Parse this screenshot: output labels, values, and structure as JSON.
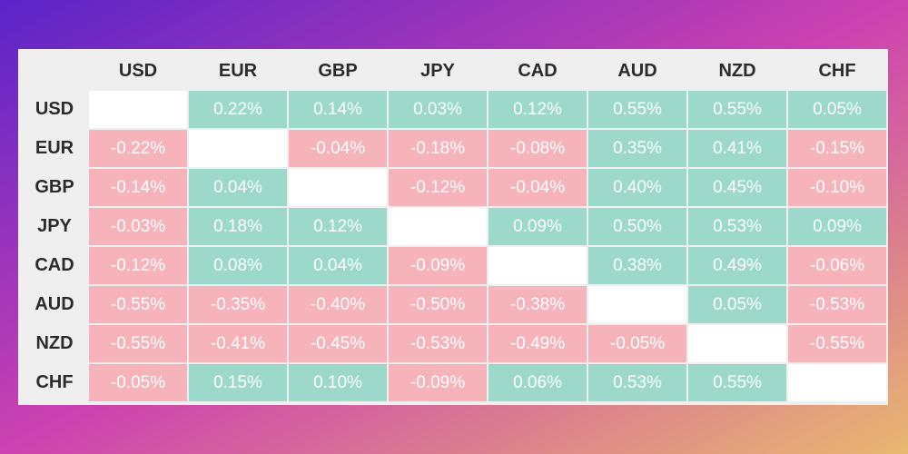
{
  "colors": {
    "background_start": "#5a24c8",
    "background_mid": "#cc42b0",
    "background_end": "#e8b870",
    "positive": "#9dd9cb",
    "negative": "#f7b3ba",
    "diagonal": "#ffffff",
    "header_bg": "#efefef",
    "header_text": "#2b2b2b",
    "value_text": "#ffffff"
  },
  "chart_data": {
    "type": "heatmap",
    "columns": [
      "USD",
      "EUR",
      "GBP",
      "JPY",
      "CAD",
      "AUD",
      "NZD",
      "CHF"
    ],
    "rows": [
      "USD",
      "EUR",
      "GBP",
      "JPY",
      "CAD",
      "AUD",
      "NZD",
      "CHF"
    ],
    "values": [
      [
        null,
        "0.22%",
        "0.14%",
        "0.03%",
        "0.12%",
        "0.55%",
        "0.55%",
        "0.05%"
      ],
      [
        "-0.22%",
        null,
        "-0.04%",
        "-0.18%",
        "-0.08%",
        "0.35%",
        "0.41%",
        "-0.15%"
      ],
      [
        "-0.14%",
        "0.04%",
        null,
        "-0.12%",
        "-0.04%",
        "0.40%",
        "0.45%",
        "-0.10%"
      ],
      [
        "-0.03%",
        "0.18%",
        "0.12%",
        null,
        "0.09%",
        "0.50%",
        "0.53%",
        "0.09%"
      ],
      [
        "-0.12%",
        "0.08%",
        "0.04%",
        "-0.09%",
        null,
        "0.38%",
        "0.49%",
        "-0.06%"
      ],
      [
        "-0.55%",
        "-0.35%",
        "-0.40%",
        "-0.50%",
        "-0.38%",
        null,
        "0.05%",
        "-0.53%"
      ],
      [
        "-0.55%",
        "-0.41%",
        "-0.45%",
        "-0.53%",
        "-0.49%",
        "-0.05%",
        null,
        "-0.55%"
      ],
      [
        "-0.05%",
        "0.15%",
        "0.10%",
        "-0.09%",
        "0.06%",
        "0.53%",
        "0.55%",
        null
      ]
    ]
  }
}
